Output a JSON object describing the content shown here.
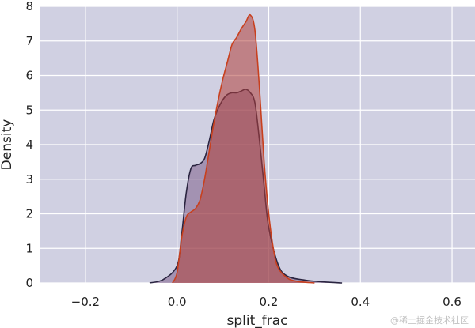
{
  "chart_data": {
    "type": "area",
    "xlabel": "split_frac",
    "ylabel": "Density",
    "xlim": [
      -0.3,
      0.65
    ],
    "ylim": [
      0,
      8
    ],
    "x_ticks": [
      "−0.2",
      "0.0",
      "0.2",
      "0.4",
      "0.6"
    ],
    "x_tick_values": [
      -0.2,
      0.0,
      0.2,
      0.4,
      0.6
    ],
    "y_ticks": [
      "0",
      "1",
      "2",
      "3",
      "4",
      "5",
      "6",
      "7",
      "8"
    ],
    "y_tick_values": [
      0,
      1,
      2,
      3,
      4,
      5,
      6,
      7,
      8
    ],
    "grid": true,
    "colors": {
      "plot_background": "#d0d0e2",
      "grid": "#ffffff"
    },
    "series": [
      {
        "color": "#2a2440",
        "fill": "#7e5f8a",
        "x": [
          -0.06,
          -0.03,
          0.0,
          0.01,
          0.02,
          0.03,
          0.04,
          0.05,
          0.06,
          0.07,
          0.08,
          0.09,
          0.1,
          0.11,
          0.12,
          0.13,
          0.14,
          0.15,
          0.16,
          0.17,
          0.18,
          0.19,
          0.2,
          0.22,
          0.24,
          0.28,
          0.32,
          0.36
        ],
        "values": [
          0.0,
          0.1,
          0.5,
          1.4,
          2.6,
          3.3,
          3.4,
          3.45,
          3.6,
          4.1,
          4.7,
          5.05,
          5.3,
          5.45,
          5.5,
          5.5,
          5.55,
          5.6,
          5.5,
          5.2,
          4.1,
          2.8,
          1.6,
          0.55,
          0.2,
          0.08,
          0.03,
          0.0
        ]
      },
      {
        "color": "#c8401e",
        "fill": "#b0403a",
        "x": [
          -0.01,
          0.0,
          0.01,
          0.02,
          0.03,
          0.04,
          0.05,
          0.06,
          0.07,
          0.08,
          0.09,
          0.1,
          0.11,
          0.12,
          0.13,
          0.14,
          0.15,
          0.16,
          0.17,
          0.18,
          0.19,
          0.2,
          0.21,
          0.22,
          0.24,
          0.26,
          0.3
        ],
        "values": [
          0.0,
          0.3,
          1.3,
          1.9,
          2.05,
          2.15,
          2.4,
          3.0,
          3.8,
          4.6,
          5.3,
          5.9,
          6.4,
          6.9,
          7.1,
          7.35,
          7.55,
          7.75,
          7.3,
          5.6,
          3.5,
          2.0,
          1.0,
          0.45,
          0.15,
          0.05,
          0.0
        ]
      }
    ]
  },
  "watermark": "@稀土掘金技术社区"
}
